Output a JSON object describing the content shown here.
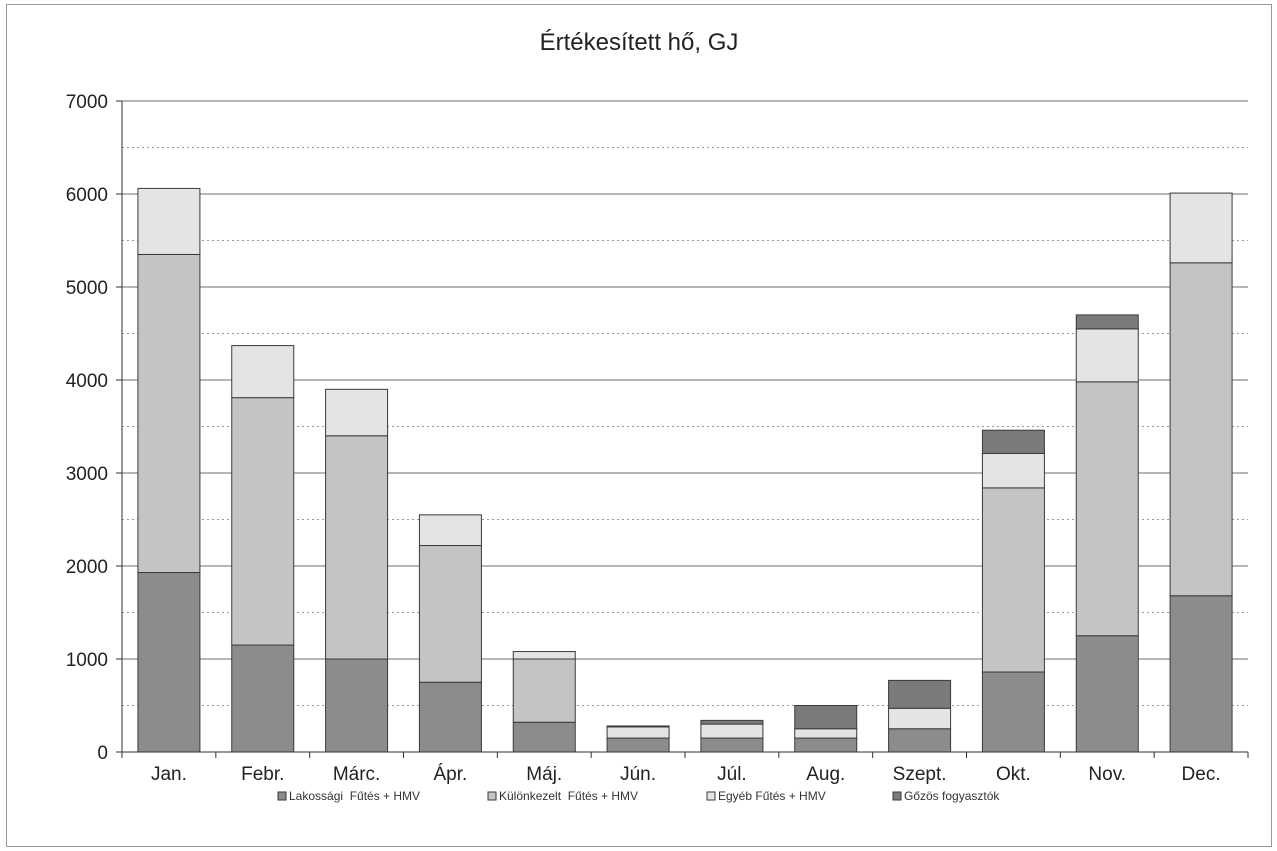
{
  "chart_data": {
    "type": "bar",
    "stacked": true,
    "title": "Értékesített hő, GJ",
    "xlabel": "",
    "ylabel": "",
    "ylim": [
      0,
      7000
    ],
    "yticks": [
      0,
      1000,
      2000,
      3000,
      4000,
      5000,
      6000,
      7000
    ],
    "grid": {
      "major": true,
      "minor_dashed": true
    },
    "legend_position": "bottom",
    "categories": [
      "Jan.",
      "Febr.",
      "Márc.",
      "Ápr.",
      "Máj.",
      "Jún.",
      "Júl.",
      "Aug.",
      "Szept.",
      "Okt.",
      "Nov.",
      "Dec."
    ],
    "series": [
      {
        "name": "Lakossági  Fűtés + HMV",
        "color": "#8c8c8c",
        "values": [
          1930,
          1150,
          1000,
          750,
          320,
          150,
          150,
          150,
          250,
          860,
          1250,
          1680
        ]
      },
      {
        "name": "Különkezelt  Fűtés + HMV",
        "color": "#c4c4c4",
        "values": [
          3420,
          2660,
          2400,
          1470,
          680,
          0,
          0,
          0,
          0,
          1980,
          2730,
          3580
        ]
      },
      {
        "name": "Egyéb Fűtés + HMV",
        "color": "#e4e4e4",
        "values": [
          710,
          560,
          500,
          330,
          80,
          120,
          150,
          100,
          220,
          370,
          570,
          750
        ]
      },
      {
        "name": "Gőzös fogyasztók",
        "color": "#7a7a7a",
        "values": [
          0,
          0,
          0,
          0,
          0,
          10,
          40,
          250,
          300,
          250,
          150,
          0
        ]
      }
    ]
  }
}
